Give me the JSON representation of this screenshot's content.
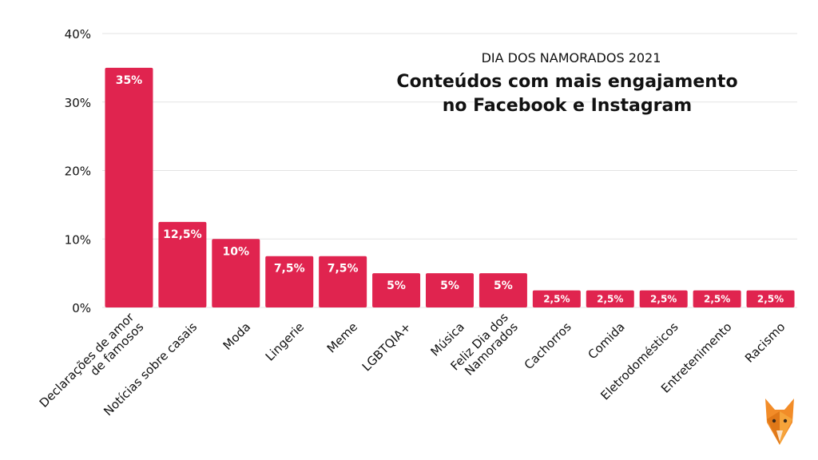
{
  "chart_data": {
    "type": "bar",
    "subtitle": "DIA DOS NAMORADOS 2021",
    "title_lines": [
      "Conteúdos com mais engajamento",
      "no Facebook e Instagram"
    ],
    "categories": [
      [
        "Declarações de amor",
        "de famosos"
      ],
      [
        "Notícias sobre casais"
      ],
      [
        "Moda"
      ],
      [
        "Lingerie"
      ],
      [
        "Meme"
      ],
      [
        "LGBTQIA+"
      ],
      [
        "Música"
      ],
      [
        "Feliz Dia dos",
        "Namorados"
      ],
      [
        "Cachorros"
      ],
      [
        "Comida"
      ],
      [
        "Eletrodomésticos"
      ],
      [
        "Entretenimento"
      ],
      [
        "Racismo"
      ]
    ],
    "values": [
      35,
      12.5,
      10,
      7.5,
      7.5,
      5,
      5,
      5,
      2.5,
      2.5,
      2.5,
      2.5,
      2.5
    ],
    "value_labels": [
      "35%",
      "12,5%",
      "10%",
      "7,5%",
      "7,5%",
      "5%",
      "5%",
      "5%",
      "2,5%",
      "2,5%",
      "2,5%",
      "2,5%",
      "2,5%"
    ],
    "ylim": [
      0,
      40
    ],
    "yticks": [
      0,
      10,
      20,
      30,
      40
    ],
    "ytick_labels": [
      "0%",
      "10%",
      "20%",
      "30%",
      "40%"
    ],
    "xlabel": "",
    "ylabel": "",
    "grid": true,
    "bar_color": "#E0244F",
    "grid_color": "#E3E3E3",
    "text_color": "#111111"
  },
  "logo": {
    "icon": "fox-logo-icon"
  }
}
